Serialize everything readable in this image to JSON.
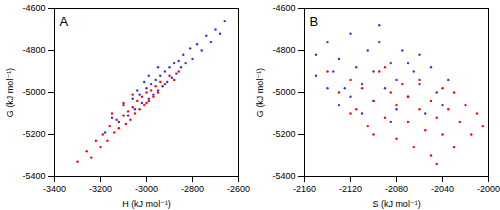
{
  "chart_data": [
    {
      "type": "scatter",
      "annotation": "A",
      "x_label": "H (kJ mol⁻¹)",
      "y_label": "G (kJ mol⁻¹)",
      "xlim": [
        -3400,
        -2600
      ],
      "xticks": [
        -3400,
        -3200,
        -3000,
        -2800,
        -2600
      ],
      "ylim": [
        -5400,
        -4600
      ],
      "yticks": [
        -5400,
        -5200,
        -5000,
        -4800,
        -4600
      ],
      "series": [
        {
          "color": "#3333dd",
          "marker": "circle",
          "points": [
            [
              -3180,
              -5190
            ],
            [
              -3150,
              -5120
            ],
            [
              -3120,
              -5140
            ],
            [
              -3100,
              -5060
            ],
            [
              -3080,
              -5110
            ],
            [
              -3060,
              -5030
            ],
            [
              -3050,
              -5080
            ],
            [
              -3030,
              -5010
            ],
            [
              -3020,
              -5050
            ],
            [
              -3000,
              -4980
            ],
            [
              -2990,
              -5030
            ],
            [
              -2980,
              -4960
            ],
            [
              -2970,
              -5010
            ],
            [
              -2960,
              -4940
            ],
            [
              -2950,
              -4990
            ],
            [
              -2940,
              -4920
            ],
            [
              -2930,
              -4970
            ],
            [
              -2920,
              -4900
            ],
            [
              -2910,
              -4950
            ],
            [
              -2900,
              -4880
            ],
            [
              -2890,
              -4930
            ],
            [
              -2880,
              -4860
            ],
            [
              -2870,
              -4910
            ],
            [
              -2860,
              -4850
            ],
            [
              -2850,
              -4880
            ],
            [
              -2840,
              -4820
            ],
            [
              -2830,
              -4860
            ],
            [
              -2810,
              -4790
            ],
            [
              -2800,
              -4840
            ],
            [
              -2780,
              -4770
            ],
            [
              -2760,
              -4800
            ],
            [
              -2740,
              -4730
            ],
            [
              -2720,
              -4760
            ],
            [
              -2700,
              -4700
            ],
            [
              -2680,
              -4720
            ],
            [
              -2660,
              -4660
            ],
            [
              -3010,
              -4950
            ],
            [
              -2990,
              -4920
            ],
            [
              -2950,
              -4880
            ],
            [
              -3040,
              -4990
            ]
          ]
        },
        {
          "color": "#ff0000",
          "marker": "circle",
          "points": [
            [
              -3300,
              -5330
            ],
            [
              -3260,
              -5280
            ],
            [
              -3240,
              -5310
            ],
            [
              -3220,
              -5230
            ],
            [
              -3200,
              -5260
            ],
            [
              -3190,
              -5200
            ],
            [
              -3170,
              -5230
            ],
            [
              -3160,
              -5160
            ],
            [
              -3140,
              -5190
            ],
            [
              -3130,
              -5130
            ],
            [
              -3120,
              -5170
            ],
            [
              -3100,
              -5110
            ],
            [
              -3090,
              -5150
            ],
            [
              -3080,
              -5090
            ],
            [
              -3070,
              -5130
            ],
            [
              -3060,
              -5070
            ],
            [
              -3050,
              -5100
            ],
            [
              -3040,
              -5040
            ],
            [
              -3030,
              -5080
            ],
            [
              -3020,
              -5020
            ],
            [
              -3010,
              -5060
            ],
            [
              -3000,
              -5000
            ],
            [
              -2990,
              -5040
            ],
            [
              -2980,
              -4990
            ],
            [
              -2970,
              -5020
            ],
            [
              -2960,
              -4970
            ],
            [
              -2950,
              -5000
            ],
            [
              -2940,
              -4950
            ],
            [
              -2920,
              -4960
            ],
            [
              -2900,
              -4920
            ],
            [
              -2880,
              -4940
            ],
            [
              -2860,
              -4900
            ],
            [
              -3100,
              -5050
            ],
            [
              -3060,
              -5010
            ],
            [
              -3150,
              -5100
            ],
            [
              -3000,
              -5050
            ]
          ]
        }
      ]
    },
    {
      "type": "scatter",
      "annotation": "B",
      "x_label": "S (kJ mol⁻¹)",
      "y_label": "G (kJ mol⁻¹)",
      "xlim": [
        -2160,
        -2000
      ],
      "xticks": [
        -2160,
        -2120,
        -2080,
        -2040,
        -2000
      ],
      "ylim": [
        -5400,
        -4600
      ],
      "yticks": [
        -5400,
        -5200,
        -5000,
        -4800,
        -4600
      ],
      "series": [
        {
          "color": "#3333dd",
          "marker": "circle",
          "points": [
            [
              -2150,
              -4820
            ],
            [
              -2140,
              -4760
            ],
            [
              -2135,
              -4900
            ],
            [
              -2130,
              -4840
            ],
            [
              -2125,
              -4980
            ],
            [
              -2120,
              -4720
            ],
            [
              -2115,
              -4880
            ],
            [
              -2110,
              -4960
            ],
            [
              -2105,
              -4800
            ],
            [
              -2100,
              -5040
            ],
            [
              -2100,
              -4900
            ],
            [
              -2095,
              -4760
            ],
            [
              -2090,
              -4980
            ],
            [
              -2085,
              -4860
            ],
            [
              -2080,
              -5080
            ],
            [
              -2080,
              -4940
            ],
            [
              -2075,
              -4800
            ],
            [
              -2070,
              -5020
            ],
            [
              -2065,
              -4900
            ],
            [
              -2060,
              -4960
            ],
            [
              -2055,
              -5100
            ],
            [
              -2050,
              -4880
            ],
            [
              -2045,
              -5000
            ],
            [
              -2040,
              -5060
            ],
            [
              -2140,
              -4980
            ],
            [
              -2130,
              -5060
            ],
            [
              -2120,
              -5020
            ],
            [
              -2110,
              -5100
            ],
            [
              -2095,
              -4680
            ],
            [
              -2085,
              -5140
            ],
            [
              -2070,
              -4860
            ],
            [
              -2150,
              -4920
            ],
            [
              -2060,
              -4820
            ],
            [
              -2035,
              -4940
            ]
          ]
        },
        {
          "color": "#ff0000",
          "marker": "circle",
          "points": [
            [
              -2140,
              -4900
            ],
            [
              -2130,
              -5000
            ],
            [
              -2120,
              -4940
            ],
            [
              -2115,
              -5080
            ],
            [
              -2110,
              -4980
            ],
            [
              -2105,
              -5160
            ],
            [
              -2100,
              -5040
            ],
            [
              -2095,
              -4900
            ],
            [
              -2090,
              -5120
            ],
            [
              -2085,
              -5000
            ],
            [
              -2080,
              -5220
            ],
            [
              -2080,
              -5060
            ],
            [
              -2075,
              -4960
            ],
            [
              -2070,
              -5140
            ],
            [
              -2070,
              -5020
            ],
            [
              -2065,
              -5260
            ],
            [
              -2060,
              -5080
            ],
            [
              -2060,
              -4940
            ],
            [
              -2055,
              -5180
            ],
            [
              -2050,
              -5040
            ],
            [
              -2050,
              -5300
            ],
            [
              -2045,
              -5120
            ],
            [
              -2040,
              -4980
            ],
            [
              -2040,
              -5200
            ],
            [
              -2035,
              -5080
            ],
            [
              -2030,
              -5260
            ],
            [
              -2030,
              -5000
            ],
            [
              -2025,
              -5140
            ],
            [
              -2020,
              -5060
            ],
            [
              -2015,
              -5200
            ],
            [
              -2010,
              -5100
            ],
            [
              -2005,
              -5160
            ],
            [
              -2090,
              -4880
            ],
            [
              -2100,
              -5200
            ],
            [
              -2120,
              -5100
            ],
            [
              -2045,
              -5340
            ]
          ]
        }
      ]
    }
  ]
}
